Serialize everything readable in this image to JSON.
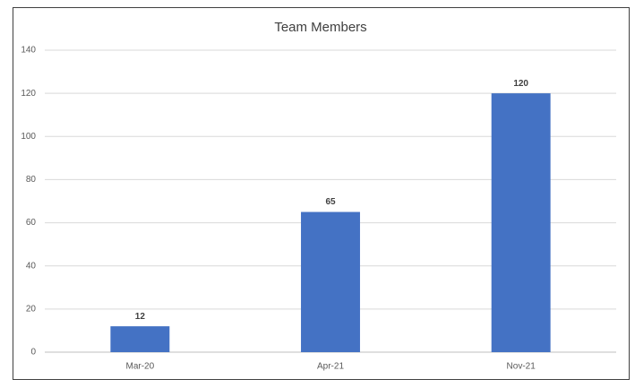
{
  "chart_data": {
    "type": "bar",
    "title": "Team Members",
    "categories": [
      "Mar-20",
      "Apr-21",
      "Nov-21"
    ],
    "values": [
      12,
      65,
      120
    ],
    "color": "#4472c4",
    "ylim": [
      0,
      140
    ],
    "yticks": [
      0,
      20,
      40,
      60,
      80,
      100,
      120,
      140
    ],
    "grid": true,
    "data_labels": true
  }
}
